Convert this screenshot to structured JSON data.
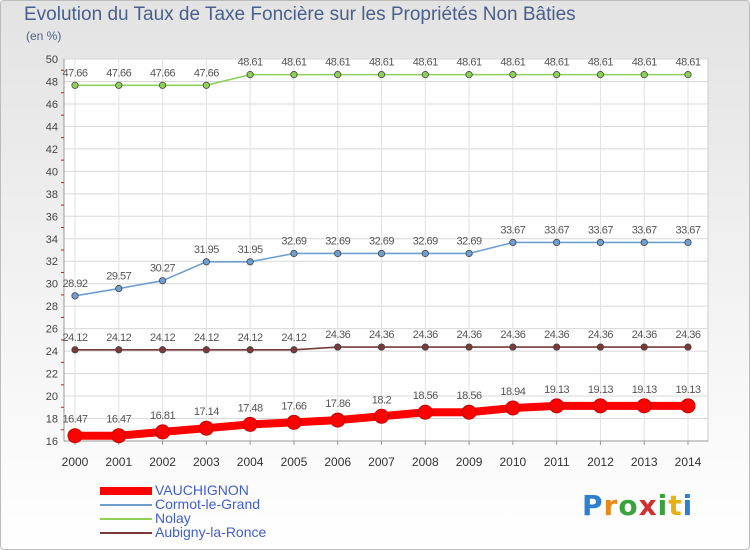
{
  "header": {
    "title": "Evolution du Taux de Taxe Foncière sur les Propriétés Non Bâties",
    "subtitle": "(en %)"
  },
  "logo": {
    "text": "Proxiti"
  },
  "chart_data": {
    "type": "line",
    "title": "Evolution du Taux de Taxe Foncière sur les Propriétés Non Bâties",
    "ylabel": "(en %)",
    "xlabel": "",
    "x": [
      2000,
      2001,
      2002,
      2003,
      2004,
      2005,
      2006,
      2007,
      2008,
      2009,
      2010,
      2011,
      2012,
      2013,
      2014
    ],
    "ylim": [
      16,
      50
    ],
    "yticks": [
      16,
      18,
      20,
      22,
      24,
      26,
      28,
      30,
      32,
      34,
      36,
      38,
      40,
      42,
      44,
      46,
      48,
      50
    ],
    "grid": true,
    "legend_position": "bottom-left",
    "series": [
      {
        "name": "VAUCHIGNON",
        "color": "#ff0000",
        "values": [
          16.47,
          16.47,
          16.81,
          17.14,
          17.48,
          17.66,
          17.86,
          18.2,
          18.56,
          18.56,
          18.94,
          19.13,
          19.13,
          19.13,
          19.13
        ]
      },
      {
        "name": "Cormot-le-Grand",
        "color": "#6f9fcf",
        "values": [
          28.92,
          29.57,
          30.27,
          31.95,
          31.95,
          32.69,
          32.69,
          32.69,
          32.69,
          32.69,
          33.67,
          33.67,
          33.67,
          33.67,
          33.67
        ]
      },
      {
        "name": "Nolay",
        "color": "#8fd05a",
        "values": [
          47.66,
          47.66,
          47.66,
          47.66,
          48.61,
          48.61,
          48.61,
          48.61,
          48.61,
          48.61,
          48.61,
          48.61,
          48.61,
          48.61,
          48.61
        ]
      },
      {
        "name": "Aubigny-la-Ronce",
        "color": "#7a3a3a",
        "values": [
          24.12,
          24.12,
          24.12,
          24.12,
          24.12,
          24.12,
          24.36,
          24.36,
          24.36,
          24.36,
          24.36,
          24.36,
          24.36,
          24.36,
          24.36
        ]
      }
    ]
  }
}
